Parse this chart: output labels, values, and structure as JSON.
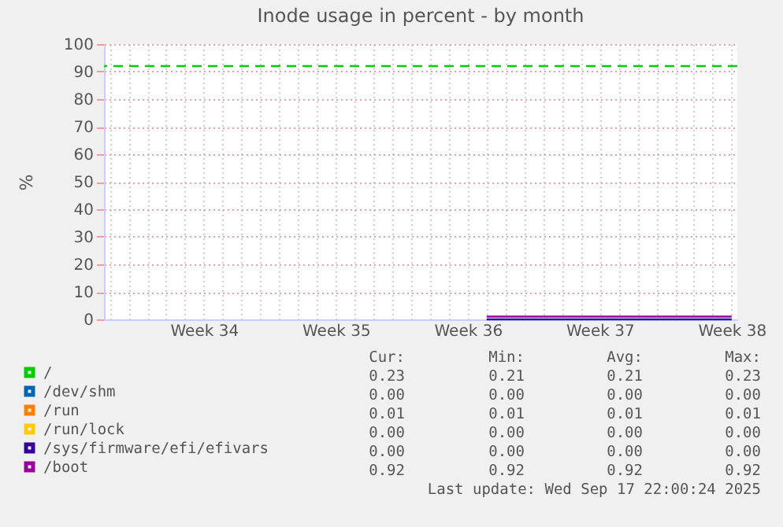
{
  "chart_data": {
    "type": "line",
    "title": "Inode usage in percent - by month",
    "ylabel": "%",
    "categories": [
      null,
      null,
      null,
      null,
      null,
      "Week 34",
      null,
      null,
      null,
      null,
      null,
      null,
      "Week 35",
      null,
      null,
      null,
      null,
      null,
      null,
      "Week 36",
      null,
      null,
      null,
      null,
      null,
      null,
      "Week 37",
      null,
      null,
      null,
      null,
      null,
      null,
      "Week 38"
    ],
    "series": [
      {
        "name": "/",
        "color": "#00cc00",
        "values": [
          null,
          null,
          null,
          null,
          null,
          null,
          null,
          null,
          null,
          null,
          null,
          null,
          null,
          null,
          null,
          null,
          null,
          null,
          null,
          null,
          null,
          null,
          null,
          null,
          null,
          null,
          null,
          null,
          null,
          null,
          null,
          null,
          null,
          null
        ]
      },
      {
        "name": "/dev/shm",
        "color": "#0066b3",
        "values": [
          null,
          null,
          null,
          null,
          null,
          null,
          null,
          null,
          null,
          null,
          null,
          null,
          null,
          null,
          null,
          null,
          null,
          null,
          null,
          null,
          null,
          null,
          null,
          null,
          null,
          null,
          null,
          null,
          null,
          null,
          null,
          null,
          null,
          null
        ]
      },
      {
        "name": "/run",
        "color": "#ff8000",
        "values": [
          null,
          null,
          null,
          null,
          null,
          null,
          null,
          null,
          null,
          null,
          null,
          null,
          null,
          null,
          null,
          null,
          null,
          null,
          null,
          null,
          null,
          null,
          null,
          null,
          null,
          null,
          null,
          null,
          null,
          null,
          null,
          null,
          null,
          null
        ]
      },
      {
        "name": "/run/lock",
        "color": "#ffcc00",
        "values": [
          null,
          null,
          null,
          null,
          null,
          null,
          null,
          null,
          null,
          null,
          null,
          null,
          null,
          null,
          null,
          null,
          null,
          null,
          null,
          null,
          null,
          null,
          null,
          null,
          null,
          null,
          null,
          null,
          null,
          null,
          null,
          null,
          null,
          null
        ]
      },
      {
        "name": "/sys/firmware/efi/efivars",
        "color": "#330099",
        "values": [
          null,
          null,
          null,
          null,
          null,
          null,
          null,
          null,
          null,
          null,
          null,
          null,
          null,
          null,
          null,
          null,
          null,
          null,
          null,
          null,
          0,
          0,
          0,
          0,
          0,
          0,
          0,
          0,
          0,
          0,
          0,
          0,
          0,
          0
        ]
      },
      {
        "name": "/boot",
        "color": "#990099",
        "values": [
          null,
          null,
          null,
          null,
          null,
          null,
          null,
          null,
          null,
          null,
          null,
          null,
          null,
          null,
          null,
          null,
          null,
          null,
          null,
          null,
          1,
          1,
          1,
          1,
          1,
          1,
          1,
          1,
          1,
          1,
          1,
          1,
          1,
          1
        ]
      }
    ],
    "ylim": [
      0,
      100
    ],
    "yticks": [
      0,
      10,
      20,
      30,
      40,
      50,
      60,
      70,
      80,
      90,
      100
    ],
    "ref_lines": [
      {
        "axis": "y",
        "value": 92,
        "color": "#00cc00",
        "line_style": "dashed"
      }
    ],
    "grid": true,
    "legend": "bottom",
    "annotations": [
      "Cur:",
      "Min:",
      "Avg:",
      "Max:",
      "0.23",
      "0.21",
      "0.21",
      "0.23",
      "0.00",
      "0.00",
      "0.00",
      "0.00",
      "0.01",
      "0.01",
      "0.01",
      "0.01",
      "0.00",
      "0.00",
      "0.00",
      "0.00",
      "0.00",
      "0.00",
      "0.00",
      "0.00",
      "0.92",
      "0.92",
      "0.92",
      "0.92",
      "Last update: Wed Sep 17 22:00:24 2025"
    ]
  }
}
